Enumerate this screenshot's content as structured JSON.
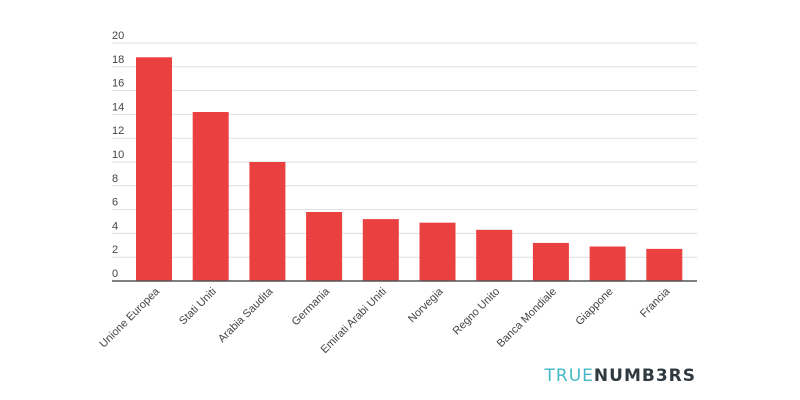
{
  "chart_data": {
    "type": "bar",
    "title": "",
    "xlabel": "",
    "ylabel": "",
    "categories": [
      "Unione Europea",
      "Stati Uniti",
      "Arabia Saudita",
      "Germania",
      "Emirati Arabi Uniti",
      "Norvegia",
      "Regno Unito",
      "Banca Mondiale",
      "Giappone",
      "Francia"
    ],
    "values": [
      18.8,
      14.2,
      10.0,
      5.8,
      5.2,
      4.9,
      4.3,
      3.2,
      2.9,
      2.7
    ],
    "ylim": [
      0,
      20
    ],
    "yticks": [
      "0",
      "2",
      "4",
      "6",
      "8",
      "10",
      "12",
      "14",
      "16",
      "18",
      "20"
    ],
    "grid": true,
    "legend": "none",
    "bar_color": "#ea4040",
    "grid_color": "#dddddd",
    "axis_color": "#555555"
  },
  "brand": {
    "part1": "TRUE",
    "part2": "NUMB3RS",
    "color1": "#43b9c8",
    "color2": "#2f3a40"
  }
}
